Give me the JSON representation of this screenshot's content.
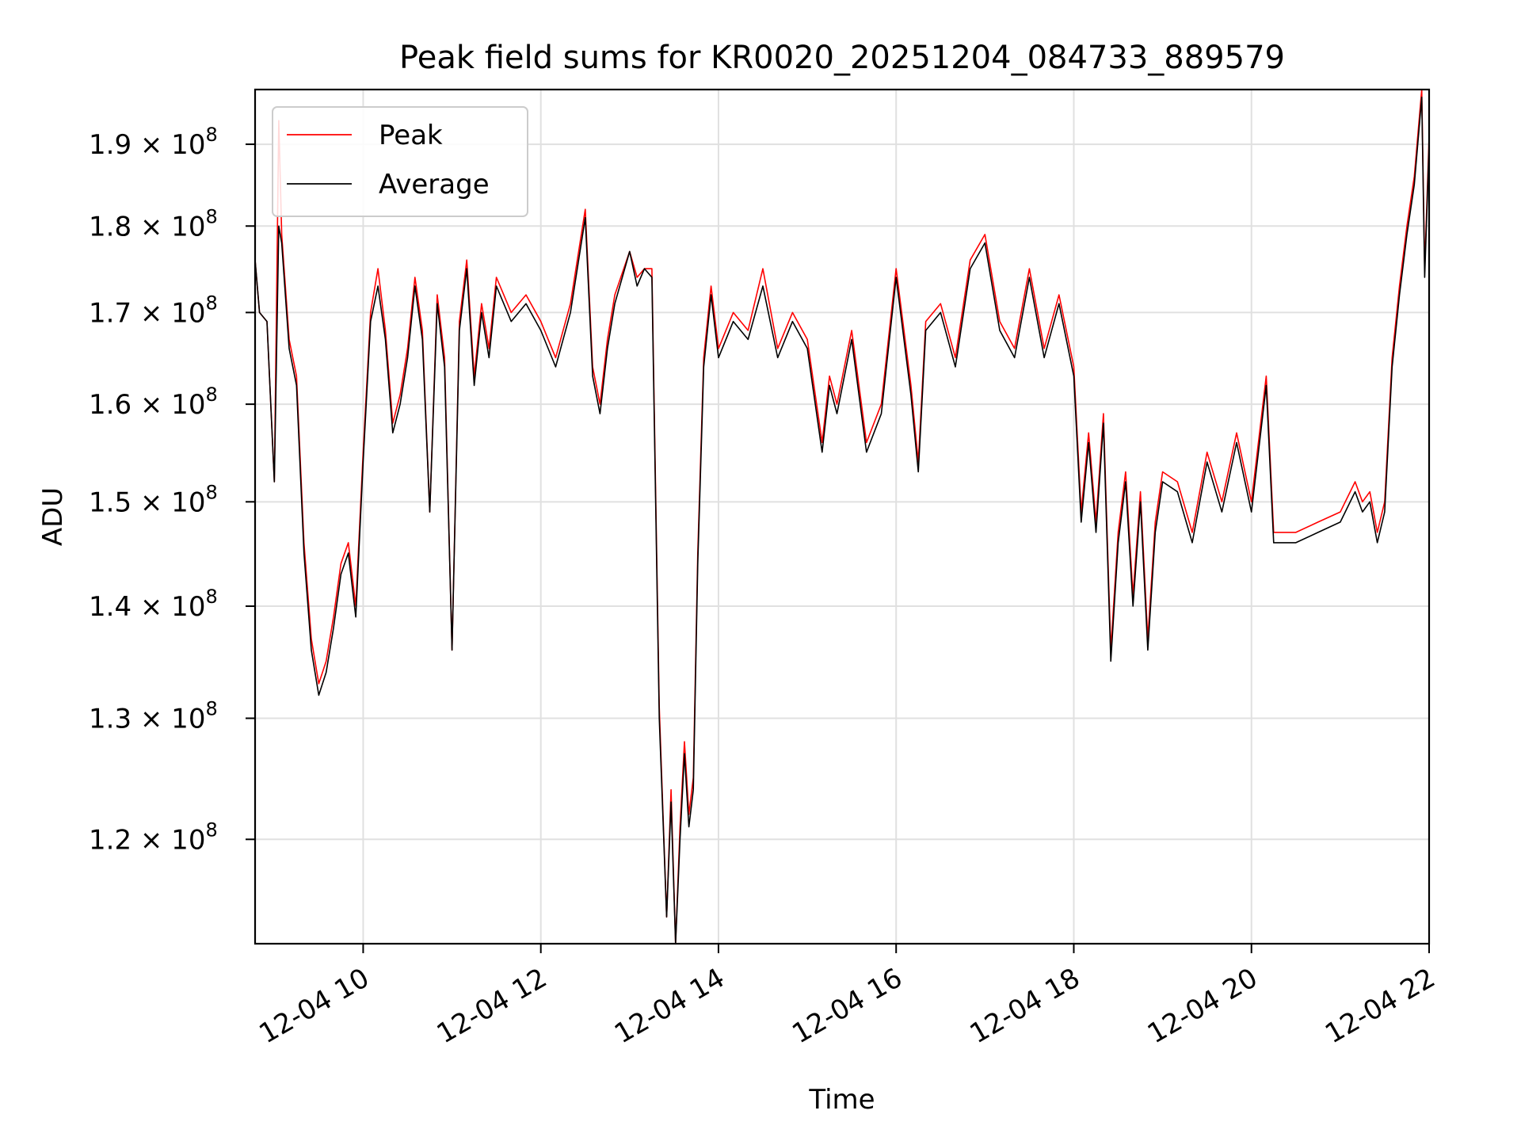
{
  "chart_data": {
    "type": "line",
    "title": "Peak field sums for KR0020_20251204_084733_889579",
    "xlabel": "Time",
    "ylabel": "ADU",
    "yscale": "log",
    "grid": true,
    "legend_position": "top-left",
    "xlim": [
      "2025-12-04 08:47",
      "2025-12-04 22:00"
    ],
    "ylim": [
      112000000,
      197000000
    ],
    "x_ticks": [
      {
        "value": "2025-12-04 10:00",
        "label": "12-04 10"
      },
      {
        "value": "2025-12-04 12:00",
        "label": "12-04 12"
      },
      {
        "value": "2025-12-04 14:00",
        "label": "12-04 14"
      },
      {
        "value": "2025-12-04 16:00",
        "label": "12-04 16"
      },
      {
        "value": "2025-12-04 18:00",
        "label": "12-04 18"
      },
      {
        "value": "2025-12-04 20:00",
        "label": "12-04 20"
      },
      {
        "value": "2025-12-04 22:00",
        "label": "12-04 22"
      }
    ],
    "y_ticks": [
      {
        "value": 120000000,
        "mantissa": "1.2",
        "exponent": "8"
      },
      {
        "value": 130000000,
        "mantissa": "1.3",
        "exponent": "8"
      },
      {
        "value": 140000000,
        "mantissa": "1.4",
        "exponent": "8"
      },
      {
        "value": 150000000,
        "mantissa": "1.5",
        "exponent": "8"
      },
      {
        "value": 160000000,
        "mantissa": "1.6",
        "exponent": "8"
      },
      {
        "value": 170000000,
        "mantissa": "1.7",
        "exponent": "8"
      },
      {
        "value": 180000000,
        "mantissa": "1.8",
        "exponent": "8"
      },
      {
        "value": 190000000,
        "mantissa": "1.9",
        "exponent": "8"
      }
    ],
    "series": [
      {
        "name": "Peak",
        "color": "#ff0000",
        "x": [
          "2025-12-04 08:47",
          "2025-12-04 08:50",
          "2025-12-04 08:55",
          "2025-12-04 09:00",
          "2025-12-04 09:03",
          "2025-12-04 09:05",
          "2025-12-04 09:10",
          "2025-12-04 09:15",
          "2025-12-04 09:20",
          "2025-12-04 09:25",
          "2025-12-04 09:30",
          "2025-12-04 09:35",
          "2025-12-04 09:40",
          "2025-12-04 09:45",
          "2025-12-04 09:50",
          "2025-12-04 09:55",
          "2025-12-04 10:00",
          "2025-12-04 10:05",
          "2025-12-04 10:10",
          "2025-12-04 10:15",
          "2025-12-04 10:20",
          "2025-12-04 10:25",
          "2025-12-04 10:30",
          "2025-12-04 10:35",
          "2025-12-04 10:40",
          "2025-12-04 10:45",
          "2025-12-04 10:50",
          "2025-12-04 10:55",
          "2025-12-04 11:00",
          "2025-12-04 11:05",
          "2025-12-04 11:10",
          "2025-12-04 11:15",
          "2025-12-04 11:20",
          "2025-12-04 11:25",
          "2025-12-04 11:30",
          "2025-12-04 11:40",
          "2025-12-04 11:50",
          "2025-12-04 12:00",
          "2025-12-04 12:10",
          "2025-12-04 12:20",
          "2025-12-04 12:30",
          "2025-12-04 12:35",
          "2025-12-04 12:40",
          "2025-12-04 12:45",
          "2025-12-04 12:50",
          "2025-12-04 13:00",
          "2025-12-04 13:05",
          "2025-12-04 13:10",
          "2025-12-04 13:15",
          "2025-12-04 13:20",
          "2025-12-04 13:25",
          "2025-12-04 13:28",
          "2025-12-04 13:31",
          "2025-12-04 13:34",
          "2025-12-04 13:37",
          "2025-12-04 13:40",
          "2025-12-04 13:43",
          "2025-12-04 13:46",
          "2025-12-04 13:50",
          "2025-12-04 13:55",
          "2025-12-04 14:00",
          "2025-12-04 14:10",
          "2025-12-04 14:20",
          "2025-12-04 14:30",
          "2025-12-04 14:40",
          "2025-12-04 14:50",
          "2025-12-04 15:00",
          "2025-12-04 15:10",
          "2025-12-04 15:15",
          "2025-12-04 15:20",
          "2025-12-04 15:30",
          "2025-12-04 15:40",
          "2025-12-04 15:50",
          "2025-12-04 16:00",
          "2025-12-04 16:10",
          "2025-12-04 16:15",
          "2025-12-04 16:20",
          "2025-12-04 16:30",
          "2025-12-04 16:40",
          "2025-12-04 16:50",
          "2025-12-04 17:00",
          "2025-12-04 17:10",
          "2025-12-04 17:20",
          "2025-12-04 17:30",
          "2025-12-04 17:40",
          "2025-12-04 17:50",
          "2025-12-04 18:00",
          "2025-12-04 18:05",
          "2025-12-04 18:10",
          "2025-12-04 18:15",
          "2025-12-04 18:20",
          "2025-12-04 18:25",
          "2025-12-04 18:30",
          "2025-12-04 18:35",
          "2025-12-04 18:40",
          "2025-12-04 18:45",
          "2025-12-04 18:50",
          "2025-12-04 18:55",
          "2025-12-04 19:00",
          "2025-12-04 19:10",
          "2025-12-04 19:20",
          "2025-12-04 19:30",
          "2025-12-04 19:40",
          "2025-12-04 19:50",
          "2025-12-04 20:00",
          "2025-12-04 20:10",
          "2025-12-04 20:15",
          "2025-12-04 20:30",
          "2025-12-04 20:45",
          "2025-12-04 21:00",
          "2025-12-04 21:10",
          "2025-12-04 21:15",
          "2025-12-04 21:20",
          "2025-12-04 21:25",
          "2025-12-04 21:30",
          "2025-12-04 21:35",
          "2025-12-04 21:40",
          "2025-12-04 21:45",
          "2025-12-04 21:50",
          "2025-12-04 21:55",
          "2025-12-04 21:57",
          "2025-12-04 22:00"
        ],
        "values": [
          176000000,
          170000000,
          169000000,
          152000000,
          193000000,
          179000000,
          167000000,
          163000000,
          146000000,
          137000000,
          133000000,
          135000000,
          139000000,
          144000000,
          146000000,
          140000000,
          155000000,
          170000000,
          175000000,
          168000000,
          158000000,
          161000000,
          166000000,
          174000000,
          168000000,
          149000000,
          172000000,
          165000000,
          136000000,
          169000000,
          176000000,
          163000000,
          171000000,
          166000000,
          174000000,
          170000000,
          172000000,
          169000000,
          165000000,
          171000000,
          182000000,
          164000000,
          160000000,
          167000000,
          172000000,
          177000000,
          174000000,
          175000000,
          175000000,
          131000000,
          114000000,
          124000000,
          112000000,
          121000000,
          128000000,
          122000000,
          125000000,
          145000000,
          165000000,
          173000000,
          166000000,
          170000000,
          168000000,
          175000000,
          166000000,
          170000000,
          167000000,
          156000000,
          163000000,
          160000000,
          168000000,
          156000000,
          160000000,
          175000000,
          162000000,
          154000000,
          169000000,
          171000000,
          165000000,
          176000000,
          179000000,
          169000000,
          166000000,
          175000000,
          166000000,
          172000000,
          164000000,
          149000000,
          157000000,
          148000000,
          159000000,
          136000000,
          147000000,
          153000000,
          141000000,
          151000000,
          137000000,
          148000000,
          153000000,
          152000000,
          147000000,
          155000000,
          150000000,
          157000000,
          150000000,
          163000000,
          147000000,
          147000000,
          148000000,
          149000000,
          152000000,
          150000000,
          151000000,
          147000000,
          150000000,
          165000000,
          173000000,
          180000000,
          186000000,
          197000000,
          175000000,
          191000000
        ]
      },
      {
        "name": "Average",
        "color": "#000000",
        "x": [
          "2025-12-04 08:47",
          "2025-12-04 08:50",
          "2025-12-04 08:55",
          "2025-12-04 09:00",
          "2025-12-04 09:03",
          "2025-12-04 09:05",
          "2025-12-04 09:10",
          "2025-12-04 09:15",
          "2025-12-04 09:20",
          "2025-12-04 09:25",
          "2025-12-04 09:30",
          "2025-12-04 09:35",
          "2025-12-04 09:40",
          "2025-12-04 09:45",
          "2025-12-04 09:50",
          "2025-12-04 09:55",
          "2025-12-04 10:00",
          "2025-12-04 10:05",
          "2025-12-04 10:10",
          "2025-12-04 10:15",
          "2025-12-04 10:20",
          "2025-12-04 10:25",
          "2025-12-04 10:30",
          "2025-12-04 10:35",
          "2025-12-04 10:40",
          "2025-12-04 10:45",
          "2025-12-04 10:50",
          "2025-12-04 10:55",
          "2025-12-04 11:00",
          "2025-12-04 11:05",
          "2025-12-04 11:10",
          "2025-12-04 11:15",
          "2025-12-04 11:20",
          "2025-12-04 11:25",
          "2025-12-04 11:30",
          "2025-12-04 11:40",
          "2025-12-04 11:50",
          "2025-12-04 12:00",
          "2025-12-04 12:10",
          "2025-12-04 12:20",
          "2025-12-04 12:30",
          "2025-12-04 12:35",
          "2025-12-04 12:40",
          "2025-12-04 12:45",
          "2025-12-04 12:50",
          "2025-12-04 13:00",
          "2025-12-04 13:05",
          "2025-12-04 13:10",
          "2025-12-04 13:15",
          "2025-12-04 13:20",
          "2025-12-04 13:25",
          "2025-12-04 13:28",
          "2025-12-04 13:31",
          "2025-12-04 13:34",
          "2025-12-04 13:37",
          "2025-12-04 13:40",
          "2025-12-04 13:43",
          "2025-12-04 13:46",
          "2025-12-04 13:50",
          "2025-12-04 13:55",
          "2025-12-04 14:00",
          "2025-12-04 14:10",
          "2025-12-04 14:20",
          "2025-12-04 14:30",
          "2025-12-04 14:40",
          "2025-12-04 14:50",
          "2025-12-04 15:00",
          "2025-12-04 15:10",
          "2025-12-04 15:15",
          "2025-12-04 15:20",
          "2025-12-04 15:30",
          "2025-12-04 15:40",
          "2025-12-04 15:50",
          "2025-12-04 16:00",
          "2025-12-04 16:10",
          "2025-12-04 16:15",
          "2025-12-04 16:20",
          "2025-12-04 16:30",
          "2025-12-04 16:40",
          "2025-12-04 16:50",
          "2025-12-04 17:00",
          "2025-12-04 17:10",
          "2025-12-04 17:20",
          "2025-12-04 17:30",
          "2025-12-04 17:40",
          "2025-12-04 17:50",
          "2025-12-04 18:00",
          "2025-12-04 18:05",
          "2025-12-04 18:10",
          "2025-12-04 18:15",
          "2025-12-04 18:20",
          "2025-12-04 18:25",
          "2025-12-04 18:30",
          "2025-12-04 18:35",
          "2025-12-04 18:40",
          "2025-12-04 18:45",
          "2025-12-04 18:50",
          "2025-12-04 18:55",
          "2025-12-04 19:00",
          "2025-12-04 19:10",
          "2025-12-04 19:20",
          "2025-12-04 19:30",
          "2025-12-04 19:40",
          "2025-12-04 19:50",
          "2025-12-04 20:00",
          "2025-12-04 20:10",
          "2025-12-04 20:15",
          "2025-12-04 20:30",
          "2025-12-04 20:45",
          "2025-12-04 21:00",
          "2025-12-04 21:10",
          "2025-12-04 21:15",
          "2025-12-04 21:20",
          "2025-12-04 21:25",
          "2025-12-04 21:30",
          "2025-12-04 21:35",
          "2025-12-04 21:40",
          "2025-12-04 21:45",
          "2025-12-04 21:50",
          "2025-12-04 21:55",
          "2025-12-04 21:57",
          "2025-12-04 22:00"
        ],
        "values": [
          176000000,
          170000000,
          169000000,
          152000000,
          180000000,
          178000000,
          166000000,
          162000000,
          145000000,
          136000000,
          132000000,
          134000000,
          138000000,
          143000000,
          145000000,
          139000000,
          154000000,
          169000000,
          173000000,
          167000000,
          157000000,
          160000000,
          165000000,
          173000000,
          167000000,
          149000000,
          171000000,
          164000000,
          136000000,
          168000000,
          175000000,
          162000000,
          170000000,
          165000000,
          173000000,
          169000000,
          171000000,
          168000000,
          164000000,
          170000000,
          181000000,
          163000000,
          159000000,
          166000000,
          171000000,
          177000000,
          173000000,
          175000000,
          174000000,
          130000000,
          114000000,
          123000000,
          112000000,
          120000000,
          127000000,
          121000000,
          124000000,
          144000000,
          164000000,
          172000000,
          165000000,
          169000000,
          167000000,
          173000000,
          165000000,
          169000000,
          166000000,
          155000000,
          162000000,
          159000000,
          167000000,
          155000000,
          159000000,
          174000000,
          161000000,
          153000000,
          168000000,
          170000000,
          164000000,
          175000000,
          178000000,
          168000000,
          165000000,
          174000000,
          165000000,
          171000000,
          163000000,
          148000000,
          156000000,
          147000000,
          158000000,
          135000000,
          146000000,
          152000000,
          140000000,
          150000000,
          136000000,
          147000000,
          152000000,
          151000000,
          146000000,
          154000000,
          149000000,
          156000000,
          149000000,
          162000000,
          146000000,
          146000000,
          147000000,
          148000000,
          151000000,
          149000000,
          150000000,
          146000000,
          149000000,
          164000000,
          172000000,
          179000000,
          185000000,
          196000000,
          174000000,
          190000000
        ]
      }
    ]
  }
}
